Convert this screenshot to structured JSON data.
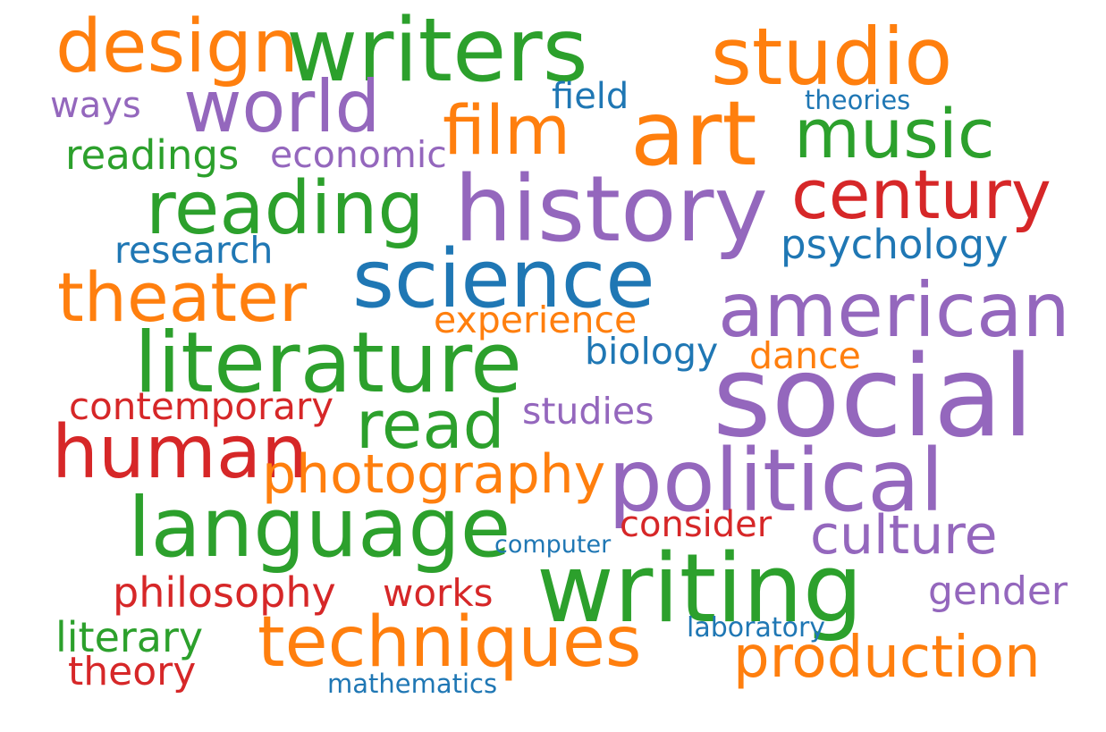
{
  "palette": {
    "orange": "#ff7f0e",
    "green": "#2ca02c",
    "purple": "#9467bd",
    "red": "#d62728",
    "blue": "#1f77b4"
  },
  "words": [
    {
      "text": "design",
      "color": "orange"
    },
    {
      "text": "writers",
      "color": "green"
    },
    {
      "text": "studio",
      "color": "orange"
    },
    {
      "text": "ways",
      "color": "purple"
    },
    {
      "text": "world",
      "color": "purple"
    },
    {
      "text": "field",
      "color": "blue"
    },
    {
      "text": "theories",
      "color": "blue"
    },
    {
      "text": "film",
      "color": "orange"
    },
    {
      "text": "art",
      "color": "orange"
    },
    {
      "text": "music",
      "color": "green"
    },
    {
      "text": "readings",
      "color": "green"
    },
    {
      "text": "economic",
      "color": "purple"
    },
    {
      "text": "reading",
      "color": "green"
    },
    {
      "text": "history",
      "color": "purple"
    },
    {
      "text": "century",
      "color": "red"
    },
    {
      "text": "research",
      "color": "blue"
    },
    {
      "text": "psychology",
      "color": "blue"
    },
    {
      "text": "science",
      "color": "blue"
    },
    {
      "text": "theater",
      "color": "orange"
    },
    {
      "text": "american",
      "color": "purple"
    },
    {
      "text": "experience",
      "color": "orange"
    },
    {
      "text": "literature",
      "color": "green"
    },
    {
      "text": "biology",
      "color": "blue"
    },
    {
      "text": "dance",
      "color": "orange"
    },
    {
      "text": "social",
      "color": "purple"
    },
    {
      "text": "contemporary",
      "color": "red"
    },
    {
      "text": "read",
      "color": "green"
    },
    {
      "text": "studies",
      "color": "purple"
    },
    {
      "text": "human",
      "color": "red"
    },
    {
      "text": "photography",
      "color": "orange"
    },
    {
      "text": "political",
      "color": "purple"
    },
    {
      "text": "language",
      "color": "green"
    },
    {
      "text": "consider",
      "color": "red"
    },
    {
      "text": "culture",
      "color": "purple"
    },
    {
      "text": "computer",
      "color": "blue"
    },
    {
      "text": "writing",
      "color": "green"
    },
    {
      "text": "philosophy",
      "color": "red"
    },
    {
      "text": "works",
      "color": "red"
    },
    {
      "text": "gender",
      "color": "purple"
    },
    {
      "text": "literary",
      "color": "green"
    },
    {
      "text": "laboratory",
      "color": "blue"
    },
    {
      "text": "techniques",
      "color": "orange"
    },
    {
      "text": "production",
      "color": "orange"
    },
    {
      "text": "theory",
      "color": "red"
    },
    {
      "text": "mathematics",
      "color": "blue"
    }
  ]
}
